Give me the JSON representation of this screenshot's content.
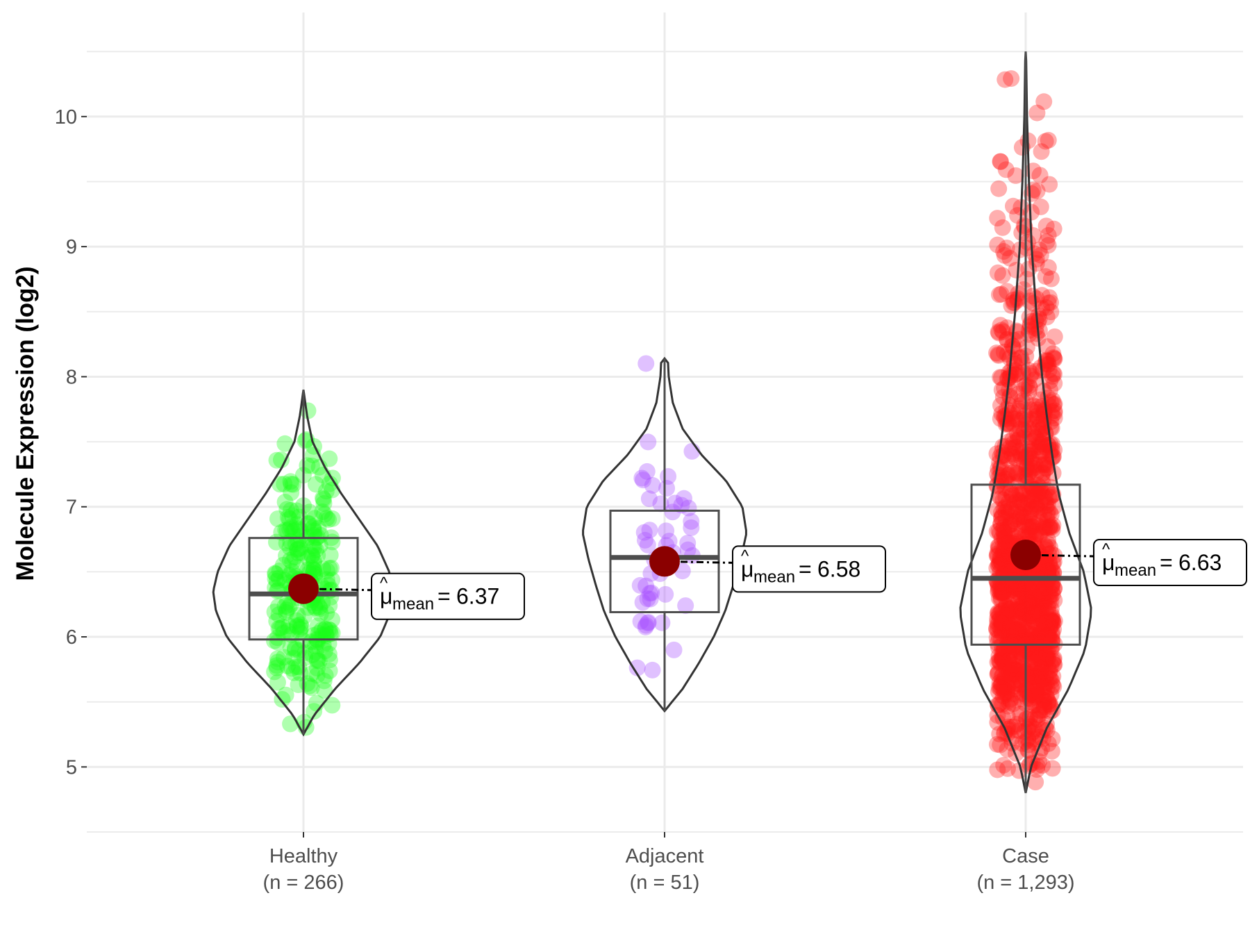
{
  "chart_data": {
    "type": "violin",
    "title": "",
    "xlabel": "",
    "ylabel": "Molecule Expression (log2)",
    "ylim": [
      4.5,
      10.8
    ],
    "yticks": [
      5,
      6,
      7,
      8,
      9,
      10
    ],
    "grid": true,
    "legend": "none",
    "groups": [
      {
        "name": "Healthy",
        "n_label": "(n = 266)",
        "color": "#1aff1a",
        "min": 5.25,
        "q1": 5.98,
        "median": 6.33,
        "q3": 6.76,
        "max": 7.9,
        "mean": 6.37,
        "mean_label": "6.37",
        "point_count": 266,
        "violin": [
          [
            5.25,
            0.0
          ],
          [
            5.4,
            0.12
          ],
          [
            5.6,
            0.35
          ],
          [
            5.8,
            0.62
          ],
          [
            6.0,
            0.85
          ],
          [
            6.2,
            0.97
          ],
          [
            6.35,
            1.0
          ],
          [
            6.5,
            0.95
          ],
          [
            6.7,
            0.82
          ],
          [
            6.9,
            0.62
          ],
          [
            7.1,
            0.42
          ],
          [
            7.3,
            0.24
          ],
          [
            7.5,
            0.1
          ],
          [
            7.7,
            0.04
          ],
          [
            7.9,
            0.0
          ]
        ]
      },
      {
        "name": "Adjacent",
        "n_label": "(n = 51)",
        "color": "#a64dff",
        "min": 5.43,
        "q1": 6.19,
        "median": 6.61,
        "q3": 6.97,
        "max": 8.14,
        "mean": 6.58,
        "mean_label": "6.58",
        "point_count": 51,
        "violin": [
          [
            5.43,
            0.0
          ],
          [
            5.6,
            0.22
          ],
          [
            5.8,
            0.42
          ],
          [
            6.0,
            0.6
          ],
          [
            6.2,
            0.74
          ],
          [
            6.4,
            0.84
          ],
          [
            6.6,
            0.93
          ],
          [
            6.8,
            1.0
          ],
          [
            7.0,
            0.95
          ],
          [
            7.2,
            0.75
          ],
          [
            7.4,
            0.45
          ],
          [
            7.6,
            0.22
          ],
          [
            7.8,
            0.1
          ],
          [
            8.0,
            0.05
          ],
          [
            8.14,
            0.04
          ]
        ]
      },
      {
        "name": "Case",
        "n_label": "(n = 1,293)",
        "color": "#ff1a1a",
        "min": 4.8,
        "q1": 5.94,
        "median": 6.45,
        "q3": 7.17,
        "max": 10.5,
        "mean": 6.63,
        "mean_label": "6.63",
        "point_count": 1293,
        "violin": [
          [
            4.8,
            0.0
          ],
          [
            5.0,
            0.08
          ],
          [
            5.3,
            0.32
          ],
          [
            5.6,
            0.65
          ],
          [
            5.9,
            0.9
          ],
          [
            6.2,
            1.0
          ],
          [
            6.5,
            0.88
          ],
          [
            6.8,
            0.66
          ],
          [
            7.1,
            0.5
          ],
          [
            7.4,
            0.4
          ],
          [
            7.7,
            0.32
          ],
          [
            8.0,
            0.25
          ],
          [
            8.5,
            0.16
          ],
          [
            9.0,
            0.09
          ],
          [
            9.5,
            0.05
          ],
          [
            10.0,
            0.02
          ],
          [
            10.5,
            0.005
          ]
        ]
      }
    ]
  }
}
